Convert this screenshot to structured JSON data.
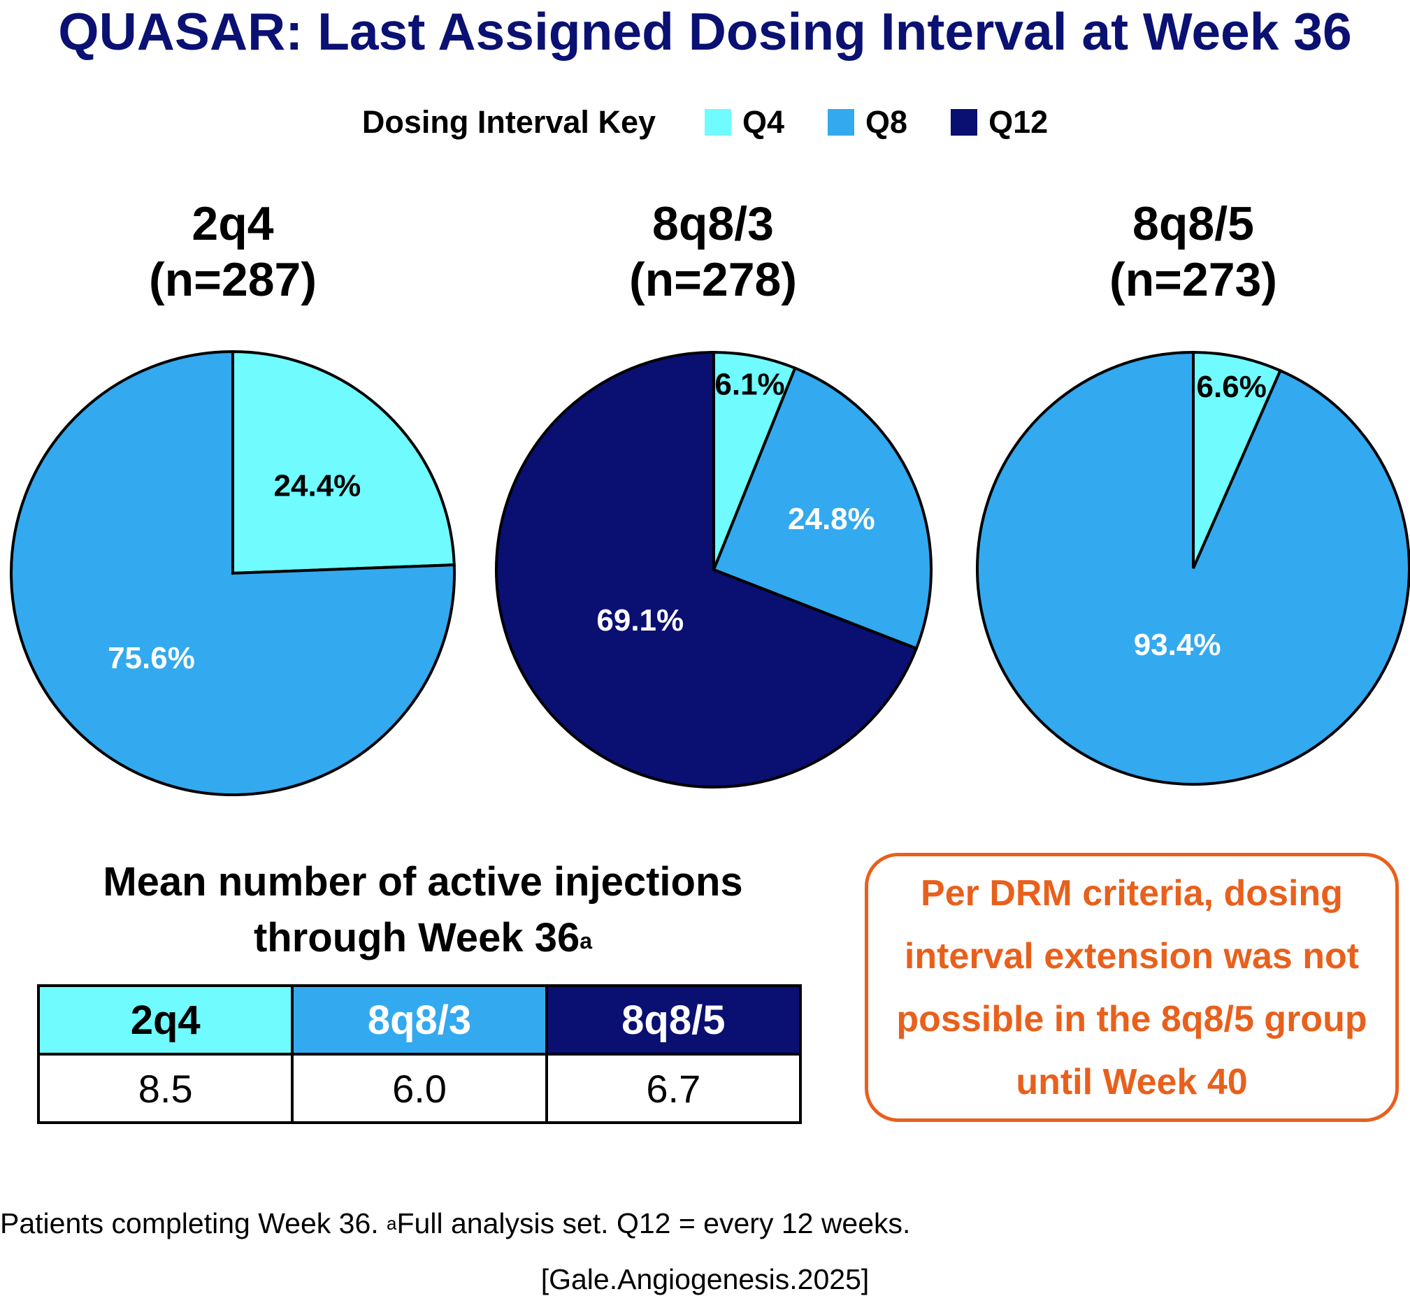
{
  "title": "QUASAR: Last Assigned Dosing Interval at Week 36",
  "legend": {
    "label": "Dosing Interval Key",
    "items": [
      {
        "name": "Q4",
        "color": "#6ffbff"
      },
      {
        "name": "Q8",
        "color": "#33a9ef"
      },
      {
        "name": "Q12",
        "color": "#0a0f72"
      }
    ]
  },
  "chart_data": [
    {
      "type": "pie",
      "title": "2q4",
      "subtitle": "(n=287)",
      "slices": [
        {
          "name": "Q4",
          "value": 24.4,
          "label": "24.4%",
          "color": "#6ffbff",
          "label_color": "#000000"
        },
        {
          "name": "Q8",
          "value": 75.6,
          "label": "75.6%",
          "color": "#33a9ef",
          "label_color": "#ffffff"
        }
      ]
    },
    {
      "type": "pie",
      "title": "8q8/3",
      "subtitle": "(n=278)",
      "slices": [
        {
          "name": "Q4",
          "value": 6.1,
          "label": "6.1%",
          "color": "#6ffbff",
          "label_color": "#000000"
        },
        {
          "name": "Q8",
          "value": 24.8,
          "label": "24.8%",
          "color": "#33a9ef",
          "label_color": "#ffffff"
        },
        {
          "name": "Q12",
          "value": 69.1,
          "label": "69.1%",
          "color": "#0a0f72",
          "label_color": "#ffffff"
        }
      ]
    },
    {
      "type": "pie",
      "title": "8q8/5",
      "subtitle": "(n=273)",
      "slices": [
        {
          "name": "Q4",
          "value": 6.6,
          "label": "6.6%",
          "color": "#6ffbff",
          "label_color": "#000000"
        },
        {
          "name": "Q8",
          "value": 93.4,
          "label": "93.4%",
          "color": "#33a9ef",
          "label_color": "#ffffff"
        }
      ]
    }
  ],
  "mean_table": {
    "title_line1": "Mean number of active injections",
    "title_line2": "through Week 36",
    "title_sup": "a",
    "headers": [
      "2q4",
      "8q8/3",
      "8q8/5"
    ],
    "header_colors": [
      "#6ffbff",
      "#33a9ef",
      "#0a0f72"
    ],
    "values": [
      "8.5",
      "6.0",
      "6.7"
    ]
  },
  "note": "Per DRM criteria, dosing interval extension was not possible in the 8q8/5 group until Week 40",
  "footnote": {
    "part1": "Patients completing Week 36. ",
    "sup": "a",
    "part2": "Full analysis set. Q12 = every 12 weeks."
  },
  "citation": "[Gale.Angiogenesis.2025]"
}
